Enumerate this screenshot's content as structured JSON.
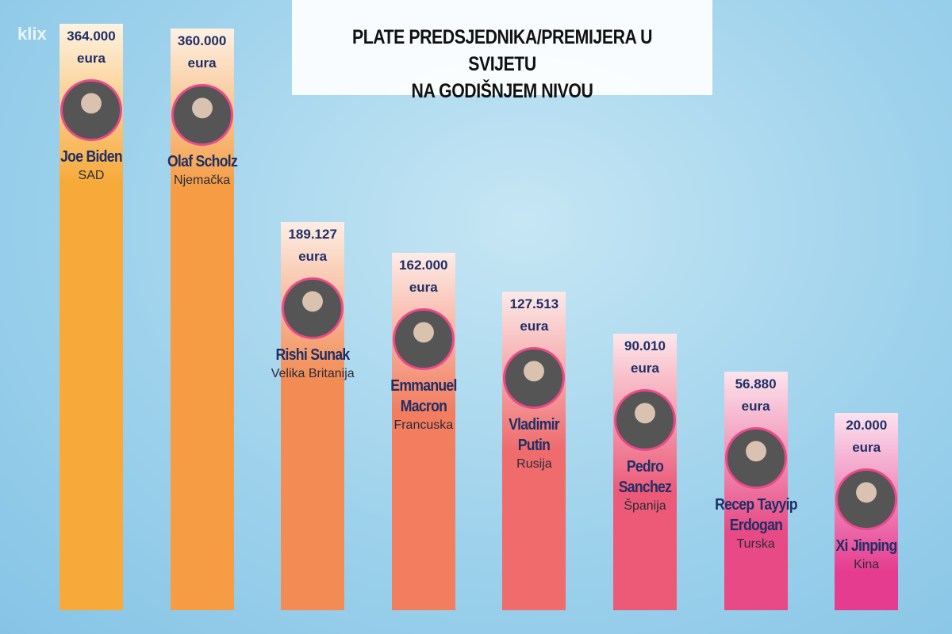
{
  "chart_data": {
    "type": "bar",
    "logo": "klix",
    "title": [
      "PLATE PREDSJEDNIKA/PREMIJERA U SVIJETU",
      "NA GODIŠNJEM NIVOU"
    ],
    "categories": [
      "Joe Biden",
      "Olaf Scholz",
      "Rishi Sunak",
      "Emmanuel Macron",
      "Vladimir Putin",
      "Pedro Sanchez",
      "Recep Tayyip Erdogan",
      "Xi Jinping"
    ],
    "countries": [
      "SAD",
      "Njemačka",
      "Velika Britanija",
      "Francuska",
      "Rusija",
      "Španija",
      "Turska",
      "Kina"
    ],
    "values": [
      364000,
      360000,
      189127,
      162000,
      127513,
      90010,
      56880,
      20000
    ],
    "value_labels": [
      "364.000",
      "360.000",
      "189.127",
      "162.000",
      "127.513",
      "90.010",
      "56.880",
      "20.000"
    ],
    "unit": "eura",
    "colors": [
      "#f7aa3a",
      "#f59c44",
      "#f28b54",
      "#f27d5f",
      "#ef6b6c",
      "#ec5a78",
      "#e84a85",
      "#e63c8f"
    ]
  }
}
